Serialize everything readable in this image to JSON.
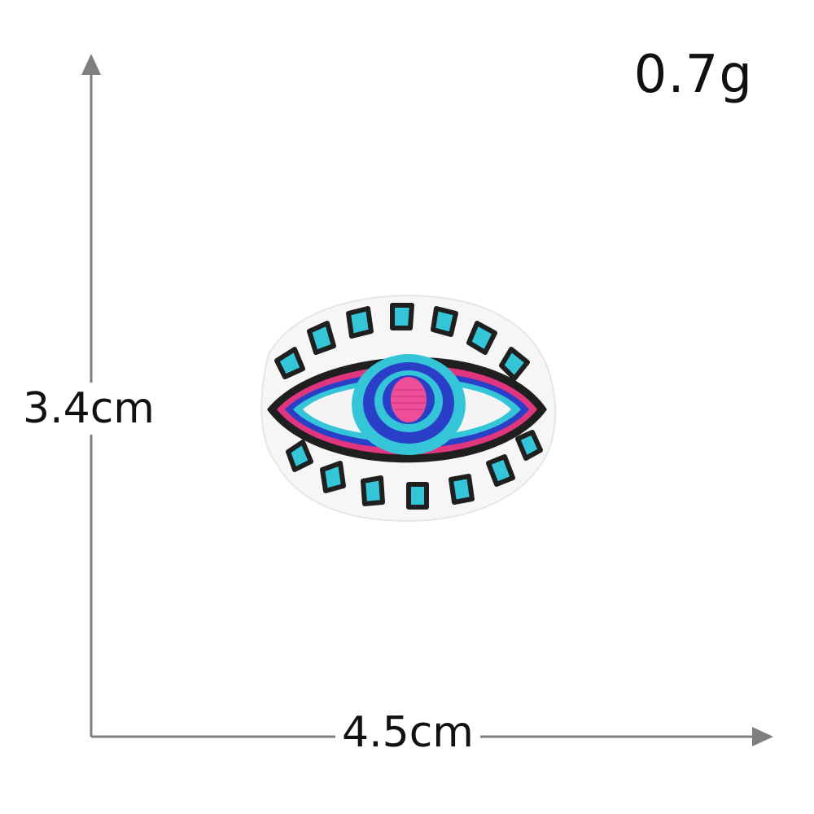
{
  "weight_label": "0.7g",
  "height_label": "3.4cm",
  "width_label": "4.5cm",
  "icons": {
    "product": "evil-eye-embroidered-patch",
    "vertical_arrow": "arrow-up-icon",
    "horizontal_arrow": "arrow-right-icon"
  },
  "colors": {
    "arrow": "#7f7f7f",
    "outline": "#1f1f1f",
    "turquoise": "#34c6d8",
    "royal_blue": "#2a3fc7",
    "magenta": "#e0367f",
    "felt": "#f6f6f6"
  }
}
